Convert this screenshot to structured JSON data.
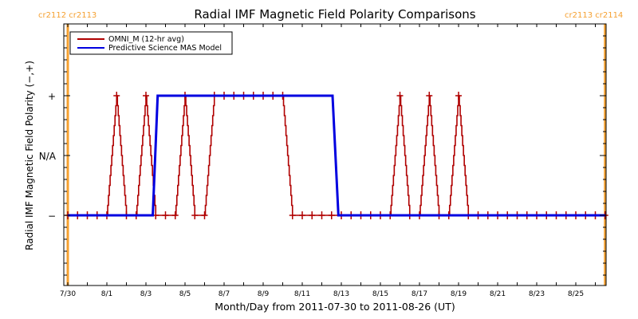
{
  "chart_data": {
    "type": "line",
    "title": "Radial IMF Magnetic Field Polarity Comparisons",
    "xlabel": "Month/Day from 2011-07-30 to 2011-08-26 (UT)",
    "ylabel": "Radial IMF Magnetic Field Polarity (−,+)",
    "x_units": "days since 2011-07-30 00:00 UT",
    "xlim": [
      0,
      28
    ],
    "ylim": [
      -2.2,
      2.2
    ],
    "x_tick_labels": [
      {
        "day": 0,
        "label": "7/30"
      },
      {
        "day": 2,
        "label": "8/1"
      },
      {
        "day": 4,
        "label": "8/3"
      },
      {
        "day": 6,
        "label": "8/5"
      },
      {
        "day": 8,
        "label": "8/7"
      },
      {
        "day": 10,
        "label": "8/9"
      },
      {
        "day": 12,
        "label": "8/11"
      },
      {
        "day": 14,
        "label": "8/13"
      },
      {
        "day": 16,
        "label": "8/15"
      },
      {
        "day": 18,
        "label": "8/17"
      },
      {
        "day": 20,
        "label": "8/19"
      },
      {
        "day": 22,
        "label": "8/21"
      },
      {
        "day": 24,
        "label": "8/23"
      },
      {
        "day": 26,
        "label": "8/25"
      }
    ],
    "y_tick_labels": [
      {
        "value": 1,
        "label": "+"
      },
      {
        "value": 0,
        "label": "N/A"
      },
      {
        "value": -1,
        "label": "−"
      }
    ],
    "carrington_markers": [
      {
        "day": 0,
        "label": "cr2112 cr2113",
        "side": "left"
      },
      {
        "day": 27.5,
        "label": "cr2113 cr2114",
        "side": "right"
      }
    ],
    "legend": {
      "placement": "top-left",
      "entries": [
        {
          "name": "OMNI_M (12-hr avg)",
          "color": "#b00000"
        },
        {
          "name": "Predictive Science MAS Model",
          "color": "#0000e0"
        }
      ]
    },
    "series": [
      {
        "name": "OMNI_M (12-hr avg)",
        "color": "#b00000",
        "style": "stepped-line-with-plus-markers",
        "interval_days": 0.5,
        "start_day": 0,
        "values": [
          -1,
          -1,
          -1,
          -1,
          -1,
          1,
          -1,
          -1,
          1,
          -1,
          -1,
          -1,
          1,
          -1,
          -1,
          1,
          1,
          1,
          1,
          1,
          1,
          1,
          1,
          -1,
          -1,
          -1,
          -1,
          -1,
          -1,
          -1,
          -1,
          -1,
          -1,
          -1,
          1,
          -1,
          -1,
          1,
          -1,
          -1,
          1,
          -1,
          -1,
          -1,
          -1,
          -1,
          -1,
          -1,
          -1,
          -1,
          -1,
          -1,
          -1,
          -1,
          -1,
          -1
        ]
      },
      {
        "name": "Predictive Science MAS Model",
        "color": "#0000e0",
        "style": "line",
        "points": [
          {
            "day": 0,
            "value": -1
          },
          {
            "day": 4.35,
            "value": -1
          },
          {
            "day": 4.6,
            "value": 1
          },
          {
            "day": 13.55,
            "value": 1
          },
          {
            "day": 13.85,
            "value": -1
          },
          {
            "day": 27.5,
            "value": -1
          }
        ]
      }
    ],
    "grid": false
  },
  "colors": {
    "omni": "#b00000",
    "mas": "#0000e0",
    "carrington": "#f5a030",
    "axis": "#000000"
  }
}
